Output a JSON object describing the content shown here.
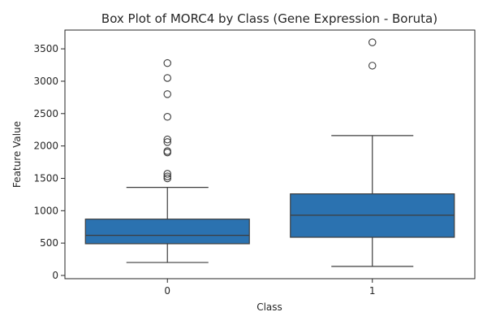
{
  "chart_data": {
    "type": "box",
    "title": "Box Plot of MORC4 by Class (Gene Expression - Boruta)",
    "xlabel": "Class",
    "ylabel": "Feature Value",
    "categories": [
      "0",
      "1"
    ],
    "ylim": [
      -50,
      3790
    ],
    "yticks": [
      0,
      500,
      1000,
      1500,
      2000,
      2500,
      3000,
      3500
    ],
    "grid": false,
    "box_color": "#2b72b0",
    "line_color": "#3d3d3d",
    "boxes": [
      {
        "category": "0",
        "whisker_low": 200,
        "q1": 490,
        "median": 620,
        "q3": 870,
        "whisker_high": 1360,
        "outliers": [
          1500,
          1530,
          1570,
          1900,
          1920,
          2060,
          2100,
          2450,
          2800,
          3050,
          3280
        ]
      },
      {
        "category": "1",
        "whisker_low": 140,
        "q1": 590,
        "median": 930,
        "q3": 1260,
        "whisker_high": 2160,
        "outliers": [
          3240,
          3600
        ]
      }
    ]
  }
}
